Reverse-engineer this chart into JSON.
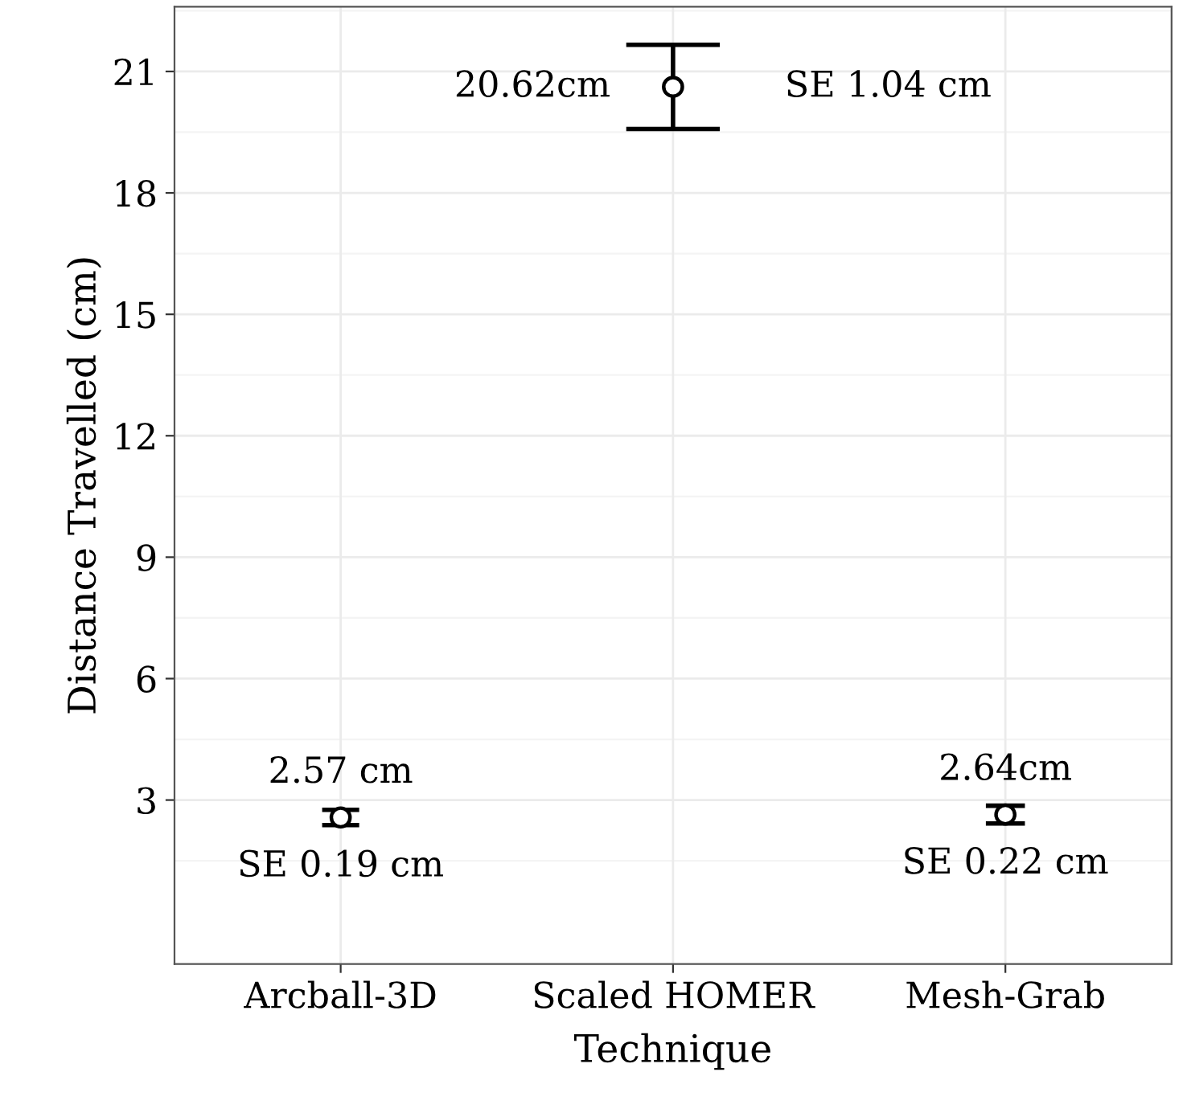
{
  "chart_data": {
    "type": "scatter",
    "xlabel": "Technique",
    "ylabel": "Distance Travelled (cm)",
    "categories": [
      "Arcball-3D",
      "Scaled HOMER",
      "Mesh-Grab"
    ],
    "series": [
      {
        "color": "#000000",
        "values": [
          2.57,
          20.62,
          2.64
        ],
        "errors": [
          0.19,
          1.04,
          0.22
        ],
        "value_labels": [
          "2.57 cm",
          "20.62cm",
          "2.64cm"
        ]
      }
    ],
    "marker": "circle",
    "ylim": [
      -1.05,
      22.6
    ],
    "yticks": [
      3,
      6,
      9,
      12,
      15,
      18,
      21
    ],
    "grid": true,
    "annotations": [
      "SE 0.19 cm",
      "SE 1.04 cm",
      "SE 0.22 cm"
    ]
  }
}
